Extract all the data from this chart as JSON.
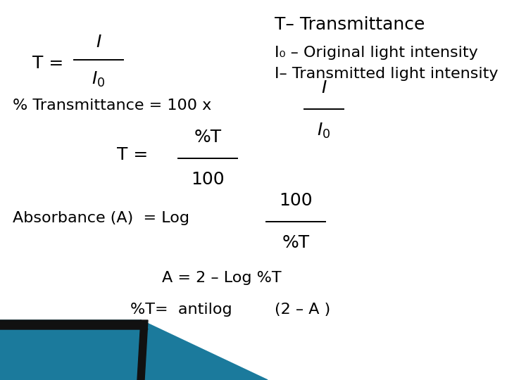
{
  "bg_color": "#ffffff",
  "text_color": "#000000",
  "font_size": 16,
  "title": "T– Transmittance",
  "def1": "I₀ – Original light intensity",
  "def2": "I– Transmitted light intensity",
  "line2_main": "% Transmittance = 100 x",
  "line5": "A = 2 – Log %T",
  "line6_a": "%T=  antilog",
  "line6_b": "(2 – A )",
  "teal_color": "#1b7a9c",
  "black_strip": "#111111",
  "light_teal": "#a8d8e8",
  "dark_teal": "#0d5f78"
}
